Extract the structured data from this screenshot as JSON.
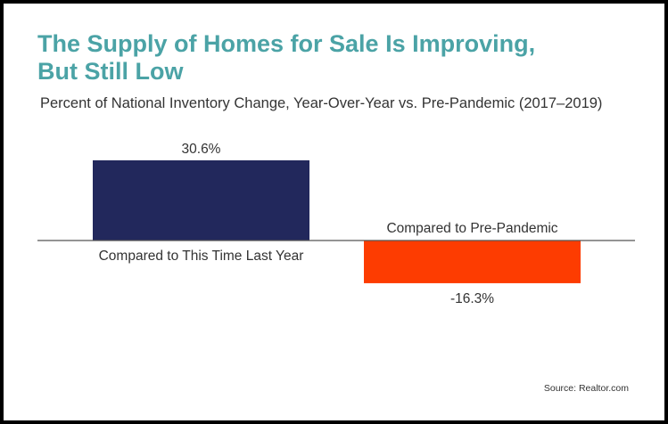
{
  "title": "The Supply of Homes for Sale Is Improving,\nBut Still Low",
  "subtitle": "Percent of National Inventory Change, Year-Over-Year vs. Pre-Pandemic (2017–2019)",
  "source": "Source: Realtor.com",
  "colors": {
    "title": "#4ba3a6",
    "positive_bar": "#22285c",
    "negative_bar": "#fd3c01",
    "axis": "#555555",
    "text": "#333333"
  },
  "chart_data": {
    "type": "bar",
    "categories": [
      "Compared to This Time Last Year",
      "Compared to Pre-Pandemic"
    ],
    "values": [
      30.6,
      -16.3
    ],
    "value_labels": [
      "30.6%",
      "-16.3%"
    ],
    "title": "The Supply of Homes for Sale Is Improving, But Still Low",
    "subtitle": "Percent of National Inventory Change, Year-Over-Year vs. Pre-Pandemic (2017–2019)",
    "xlabel": "",
    "ylabel": "",
    "ylim": [
      -16.3,
      30.6
    ],
    "grid": false,
    "legend": "none"
  }
}
